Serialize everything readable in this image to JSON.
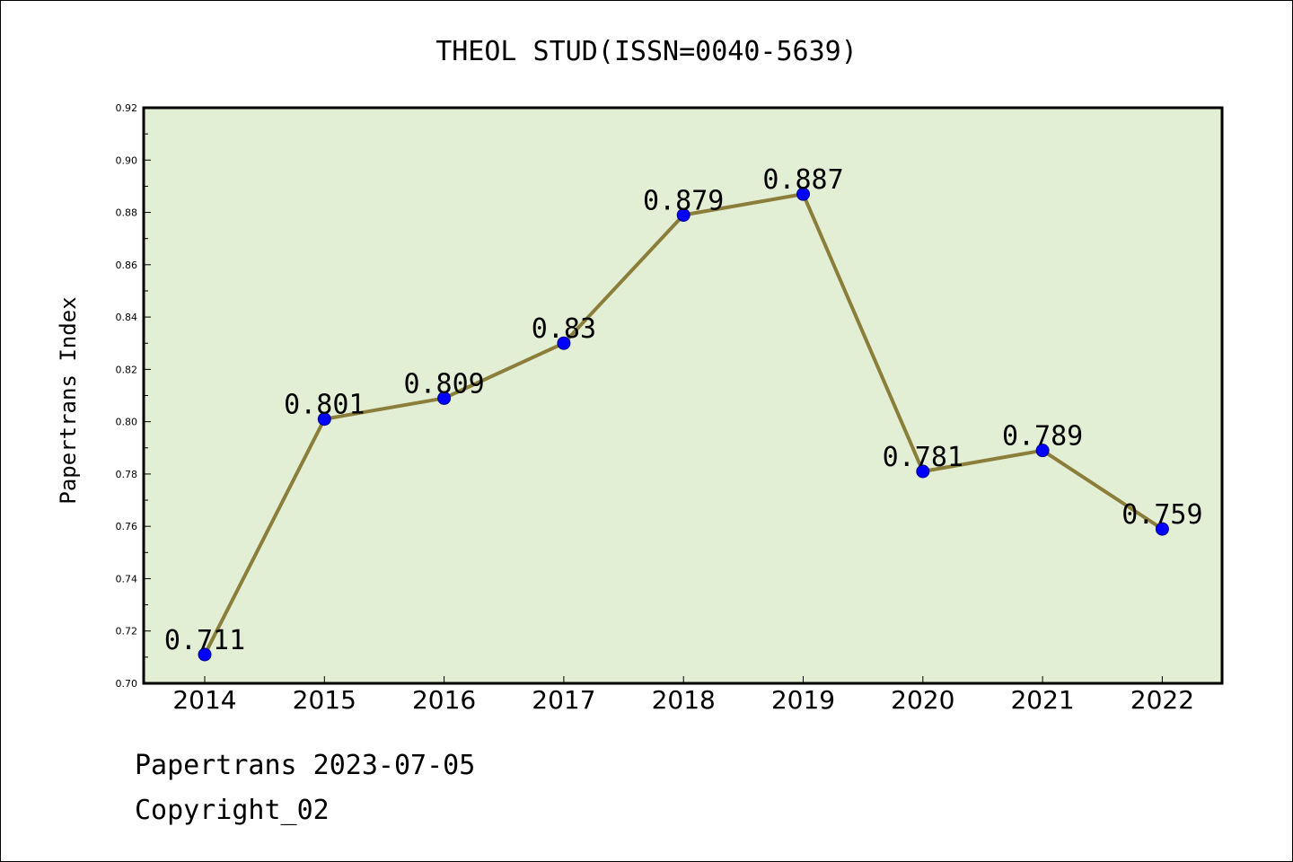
{
  "chart_data": {
    "type": "line",
    "title": "THEOL STUD(ISSN=0040-5639)",
    "xlabel": "",
    "ylabel": "Papertrans Index",
    "categories": [
      "2014",
      "2015",
      "2016",
      "2017",
      "2018",
      "2019",
      "2020",
      "2021",
      "2022"
    ],
    "series": [
      {
        "values": [
          0.711,
          0.801,
          0.809,
          0.83,
          0.879,
          0.887,
          0.781,
          0.789,
          0.759
        ],
        "labels": [
          "0.711",
          "0.801",
          "0.809",
          "0.83",
          "0.879",
          "0.887",
          "0.781",
          "0.789",
          "0.759"
        ]
      }
    ],
    "ylim": [
      0.7,
      0.92
    ],
    "yticks": [
      "0.70",
      "0.72",
      "0.74",
      "0.76",
      "0.78",
      "0.80",
      "0.82",
      "0.84",
      "0.86",
      "0.88",
      "0.90",
      "0.92"
    ],
    "grid": false,
    "legend": "none",
    "colors": {
      "plot_background": "#e2efd5",
      "line": "#8b7d3a",
      "marker": "#0000ff",
      "axis": "#000000"
    }
  },
  "footer": {
    "date_line": "Papertrans 2023-07-05",
    "copyright": "Copyright_02"
  }
}
